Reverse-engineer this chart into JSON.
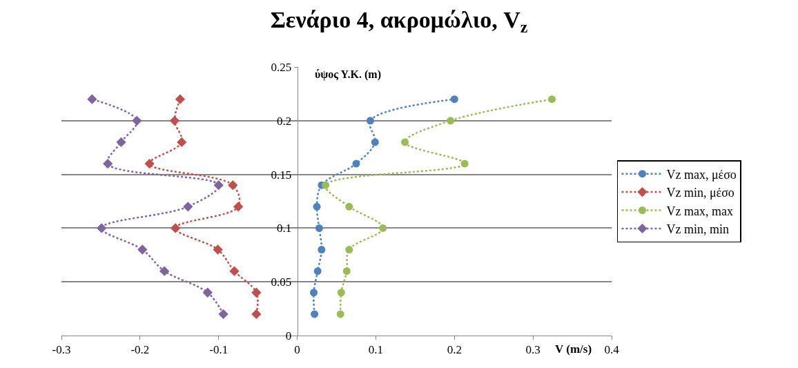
{
  "chart_data": {
    "type": "line",
    "title": "Σενάριο 4, ακρομώλιο, V$_{z}$",
    "xlabel": "V (m/s)",
    "ylabel": "ύψος Υ.Κ. (m)",
    "xlim": [
      -0.3,
      0.4
    ],
    "xticks": [
      -0.3,
      -0.2,
      -0.1,
      0,
      0.1,
      0.2,
      0.3,
      0.4
    ],
    "ylim": [
      0,
      0.25
    ],
    "yticks": [
      0,
      0.05,
      0.1,
      0.15,
      0.2,
      0.25
    ],
    "grid": "y",
    "legend": "right",
    "line_style": "dotted",
    "series": [
      {
        "name": "Vz max, μέσο",
        "color": "#4f81bd",
        "marker": "circle",
        "x": [
          0.022,
          0.021,
          0.026,
          0.031,
          0.028,
          0.025,
          0.031,
          0.075,
          0.099,
          0.093,
          0.2
        ],
        "values": [
          0.02,
          0.04,
          0.06,
          0.08,
          0.1,
          0.12,
          0.14,
          0.16,
          0.18,
          0.2,
          0.22
        ]
      },
      {
        "name": "Vz min, μέσο",
        "color": "#c0504d",
        "marker": "diamond",
        "x": [
          -0.052,
          -0.052,
          -0.08,
          -0.101,
          -0.155,
          -0.075,
          -0.082,
          -0.188,
          -0.147,
          -0.156,
          -0.149
        ],
        "values": [
          0.02,
          0.04,
          0.06,
          0.08,
          0.1,
          0.12,
          0.14,
          0.16,
          0.18,
          0.2,
          0.22
        ]
      },
      {
        "name": "Vz max, max",
        "color": "#9bbb59",
        "marker": "circle",
        "x": [
          0.055,
          0.056,
          0.063,
          0.066,
          0.109,
          0.066,
          0.036,
          0.213,
          0.137,
          0.195,
          0.324
        ],
        "values": [
          0.02,
          0.04,
          0.06,
          0.08,
          0.1,
          0.12,
          0.14,
          0.16,
          0.18,
          0.2,
          0.22
        ]
      },
      {
        "name": "Vz min, min",
        "color": "#8064a2",
        "marker": "diamond",
        "x": [
          -0.094,
          -0.114,
          -0.169,
          -0.197,
          -0.249,
          -0.139,
          -0.1,
          -0.241,
          -0.224,
          -0.204,
          -0.261
        ],
        "values": [
          0.02,
          0.04,
          0.06,
          0.08,
          0.1,
          0.12,
          0.14,
          0.16,
          0.18,
          0.2,
          0.22
        ]
      }
    ]
  }
}
